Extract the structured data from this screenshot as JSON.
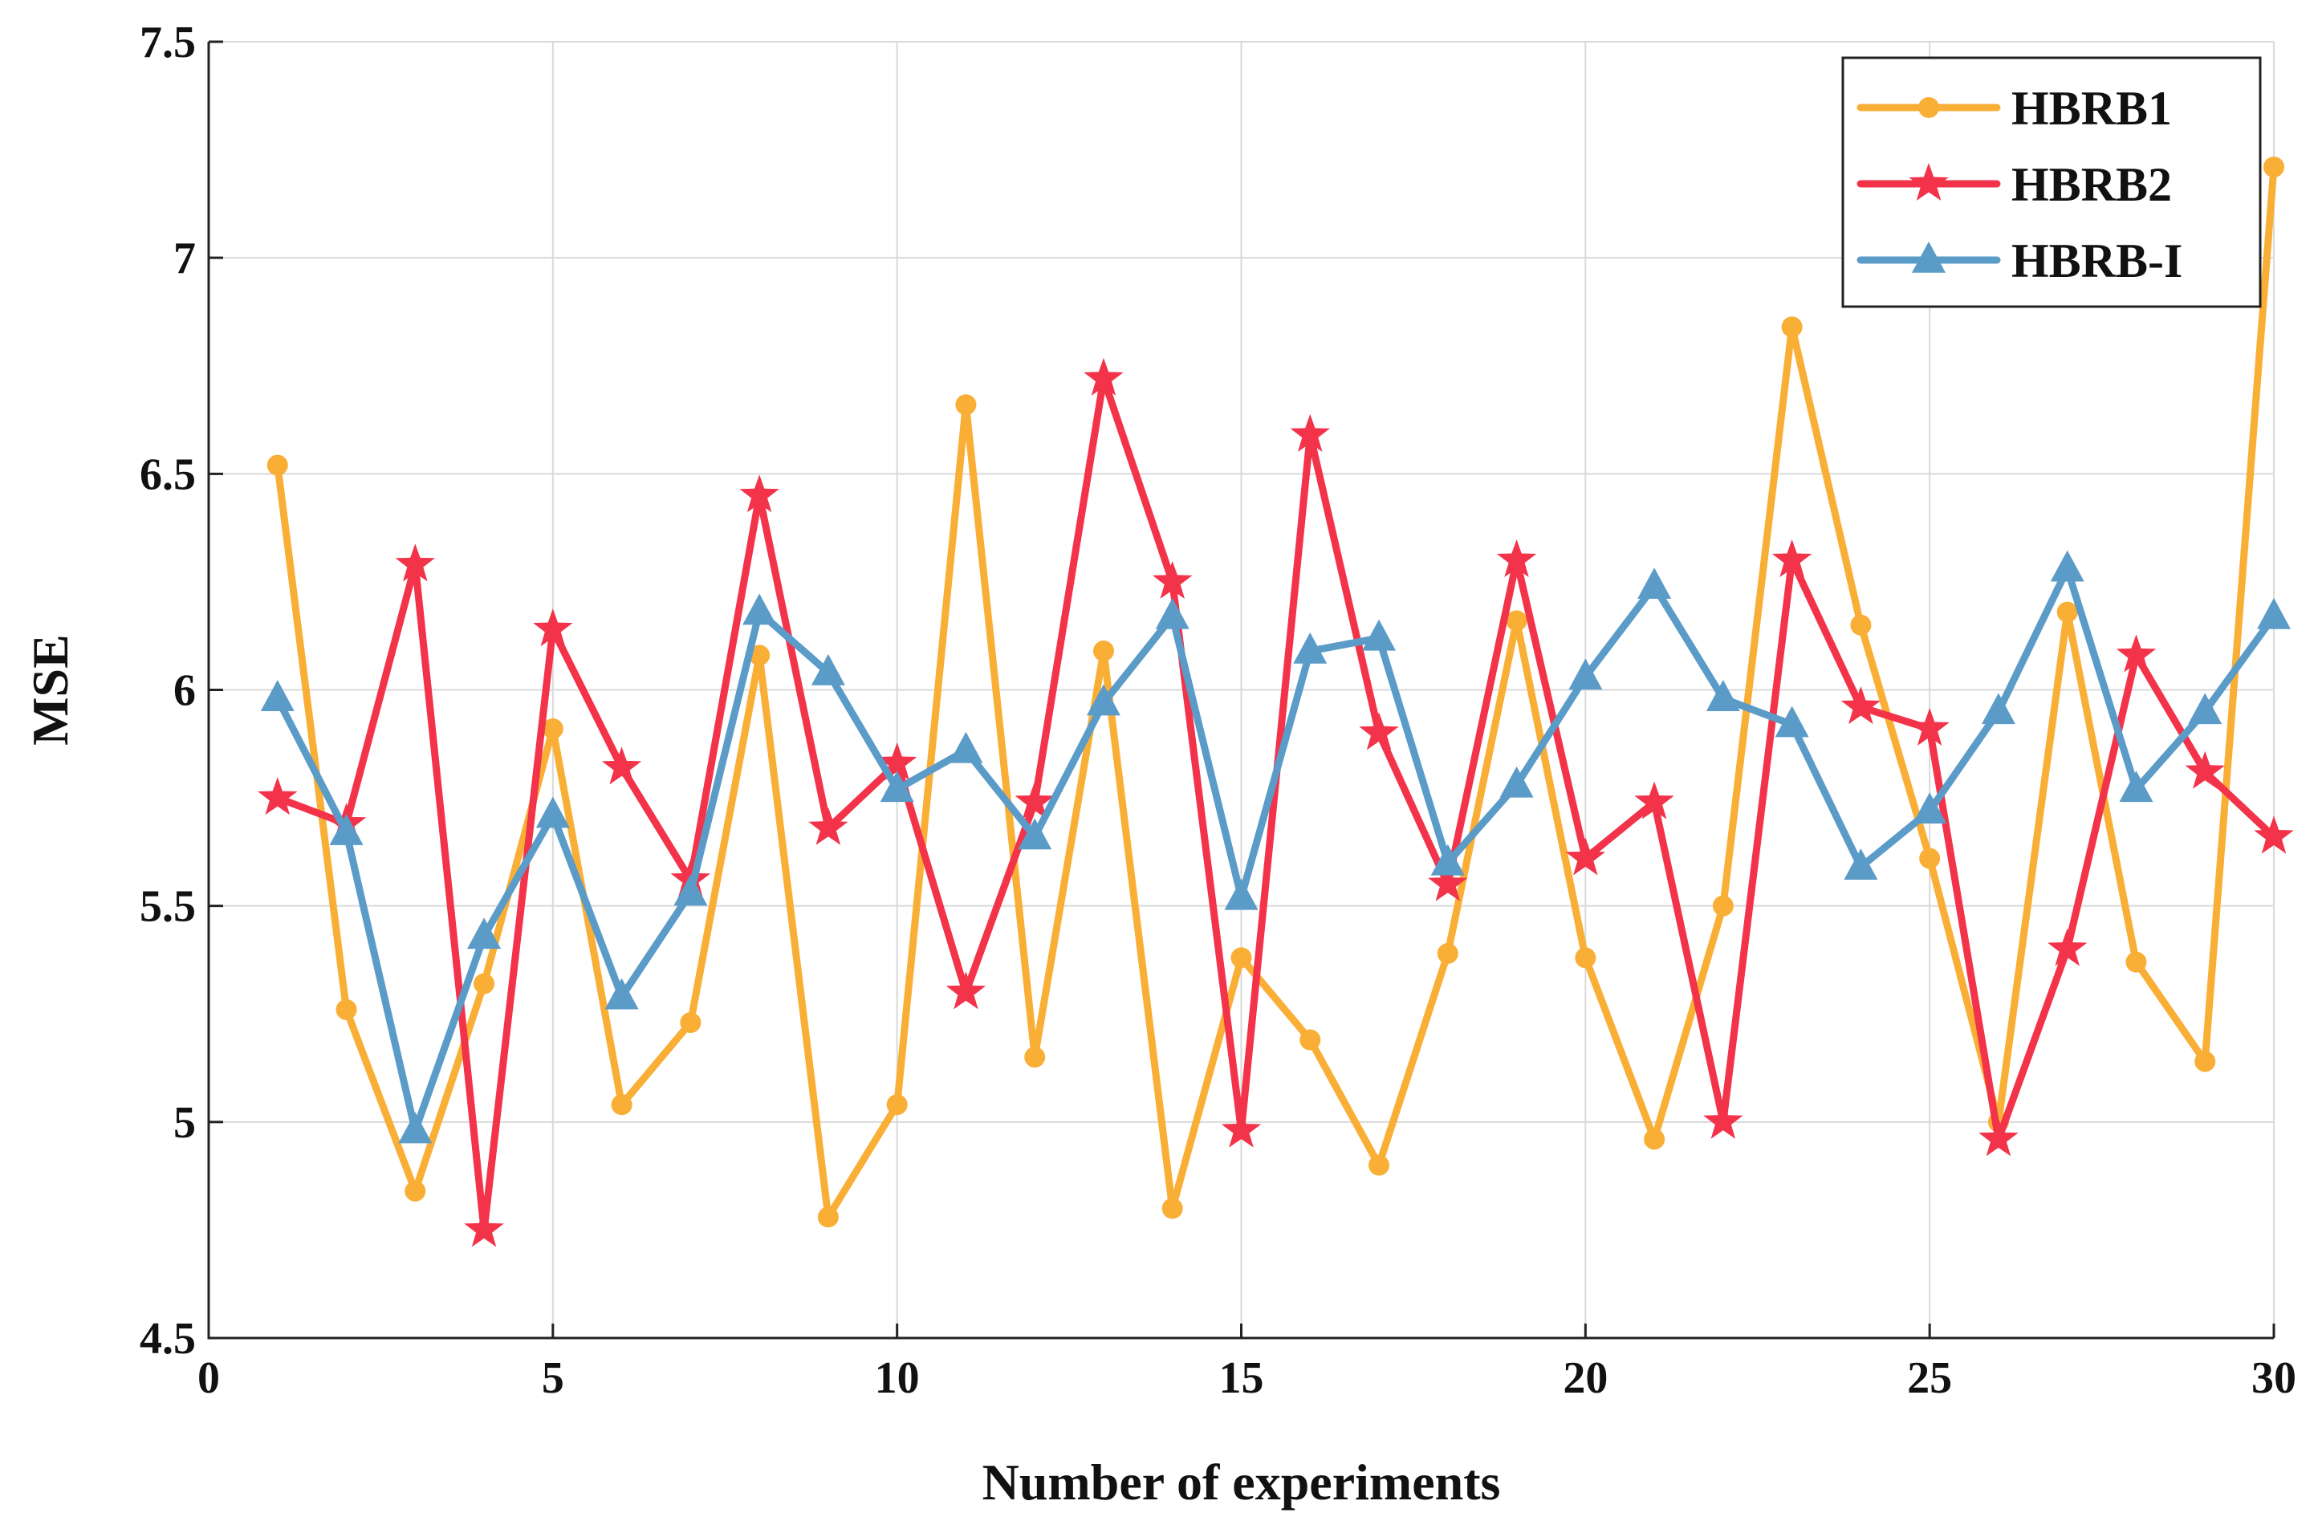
{
  "chart_data": {
    "type": "line",
    "title": "",
    "xlabel": "Number of experiments",
    "ylabel": "MSE",
    "xlim": [
      0,
      30
    ],
    "ylim": [
      4.5,
      7.5
    ],
    "xticks": [
      0,
      5,
      10,
      15,
      20,
      25,
      30
    ],
    "yticks": [
      4.5,
      5,
      5.5,
      6,
      6.5,
      7,
      7.5
    ],
    "xtick_labels": [
      "0",
      "5",
      "10",
      "15",
      "20",
      "25",
      "30"
    ],
    "ytick_labels": [
      "4.5",
      "5",
      "5.5",
      "6",
      "6.5",
      "7",
      "7.5"
    ],
    "grid": true,
    "legend_position": "top-right",
    "x": [
      1,
      2,
      3,
      4,
      5,
      6,
      7,
      8,
      9,
      10,
      11,
      12,
      13,
      14,
      15,
      16,
      17,
      18,
      19,
      20,
      21,
      22,
      23,
      24,
      25,
      26,
      27,
      28,
      29,
      30
    ],
    "series": [
      {
        "name": "HBRB1",
        "color": "#F9AE36",
        "marker": "circle",
        "values": [
          6.52,
          5.26,
          4.84,
          5.32,
          5.91,
          5.04,
          5.23,
          6.08,
          4.78,
          5.04,
          6.66,
          5.15,
          6.09,
          4.8,
          5.38,
          5.19,
          4.9,
          5.39,
          6.16,
          5.38,
          4.96,
          5.5,
          6.84,
          6.15,
          5.61,
          5.0,
          6.18,
          5.37,
          5.14,
          7.21
        ]
      },
      {
        "name": "HBRB2",
        "color": "#F2334A",
        "marker": "star",
        "values": [
          5.75,
          5.69,
          6.29,
          4.75,
          6.14,
          5.82,
          5.56,
          6.45,
          5.68,
          5.83,
          5.3,
          5.74,
          6.72,
          6.25,
          4.98,
          6.59,
          5.9,
          5.55,
          6.3,
          5.61,
          5.74,
          5.0,
          6.3,
          5.96,
          5.91,
          4.96,
          5.4,
          6.08,
          5.81,
          5.66
        ]
      },
      {
        "name": "HBRB-I",
        "color": "#5B9BC8",
        "marker": "triangle",
        "values": [
          5.98,
          5.67,
          4.98,
          5.43,
          5.71,
          5.29,
          5.53,
          6.18,
          6.04,
          5.77,
          5.86,
          5.66,
          5.97,
          6.17,
          5.52,
          6.09,
          6.12,
          5.6,
          5.78,
          6.03,
          6.24,
          5.98,
          5.92,
          5.59,
          5.72,
          5.95,
          6.28,
          5.77,
          5.95,
          6.17
        ]
      }
    ]
  }
}
